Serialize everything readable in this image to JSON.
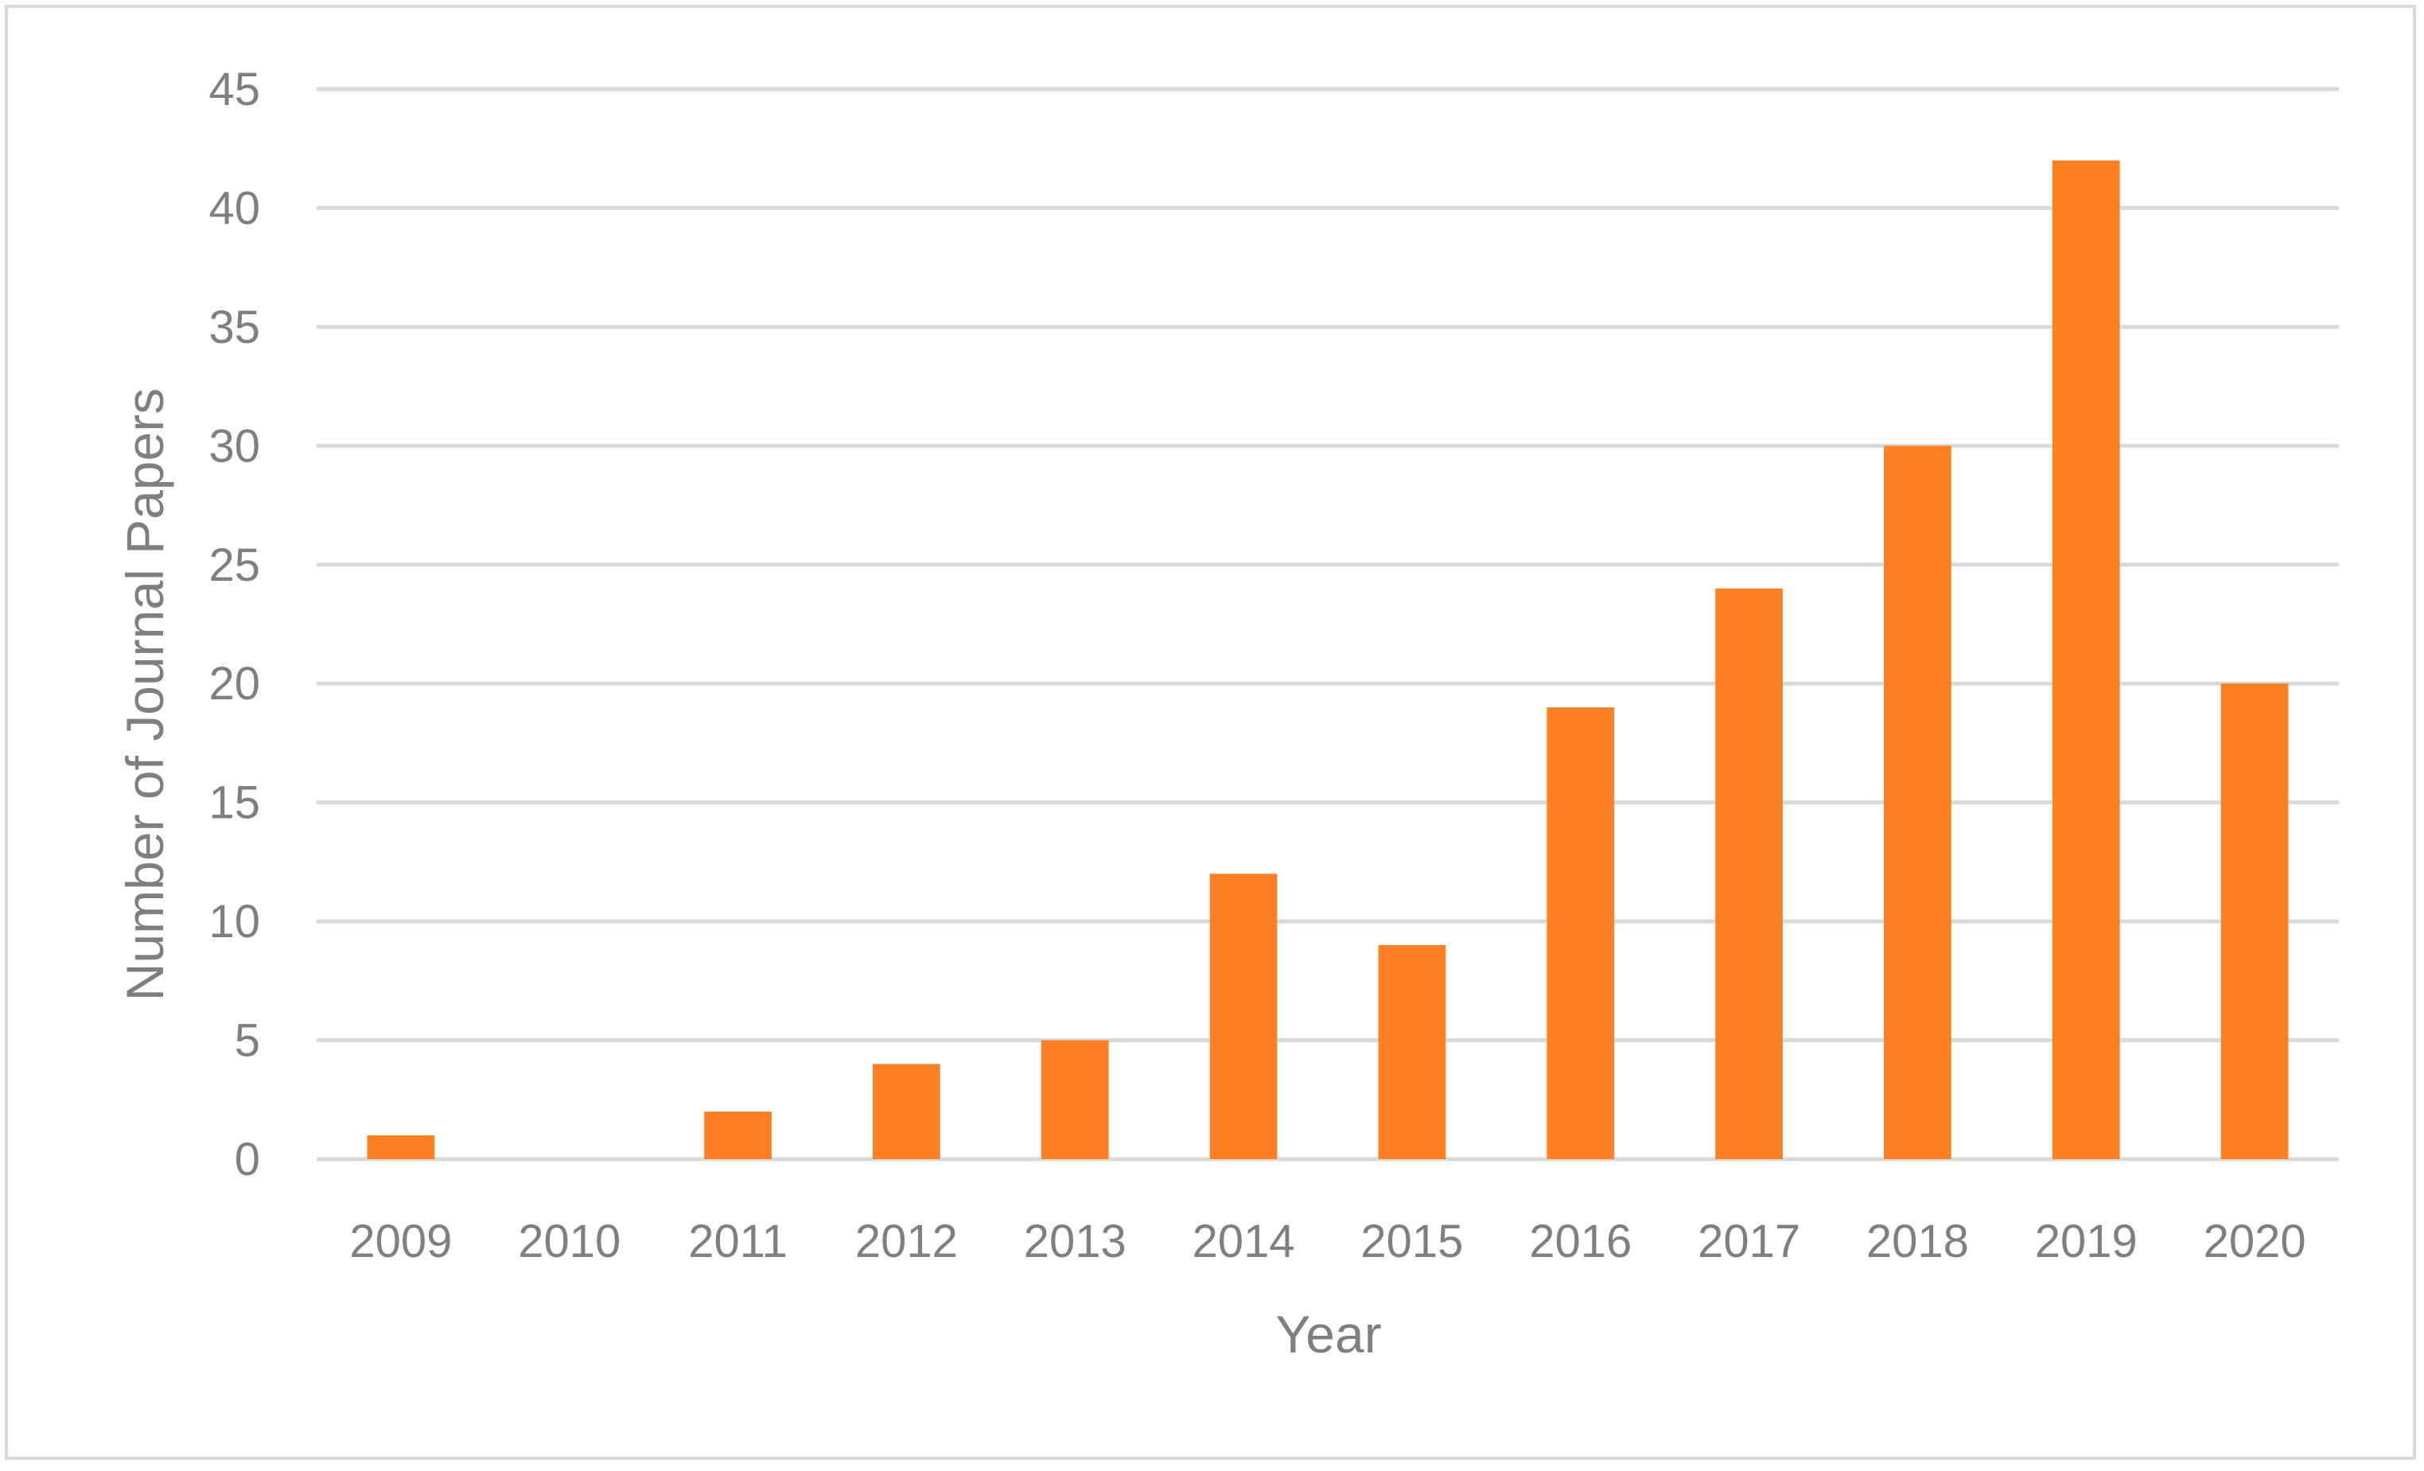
{
  "chart_data": {
    "type": "bar",
    "categories": [
      "2009",
      "2010",
      "2011",
      "2012",
      "2013",
      "2014",
      "2015",
      "2016",
      "2017",
      "2018",
      "2019",
      "2020"
    ],
    "values": [
      1,
      0,
      2,
      4,
      5,
      12,
      9,
      19,
      24,
      30,
      42,
      20
    ],
    "xlabel": "Year",
    "ylabel": "Number of Journal Papers",
    "ylim": [
      0,
      45
    ],
    "yticks": [
      "0",
      "5",
      "10",
      "15",
      "20",
      "25",
      "30",
      "35",
      "40",
      "45"
    ],
    "grid": true,
    "legend": "none",
    "colors": {
      "bar": "#fd8022",
      "grid": "#d9d9d9",
      "text": "#7f7f7f",
      "border": "#d9d9d9"
    }
  }
}
